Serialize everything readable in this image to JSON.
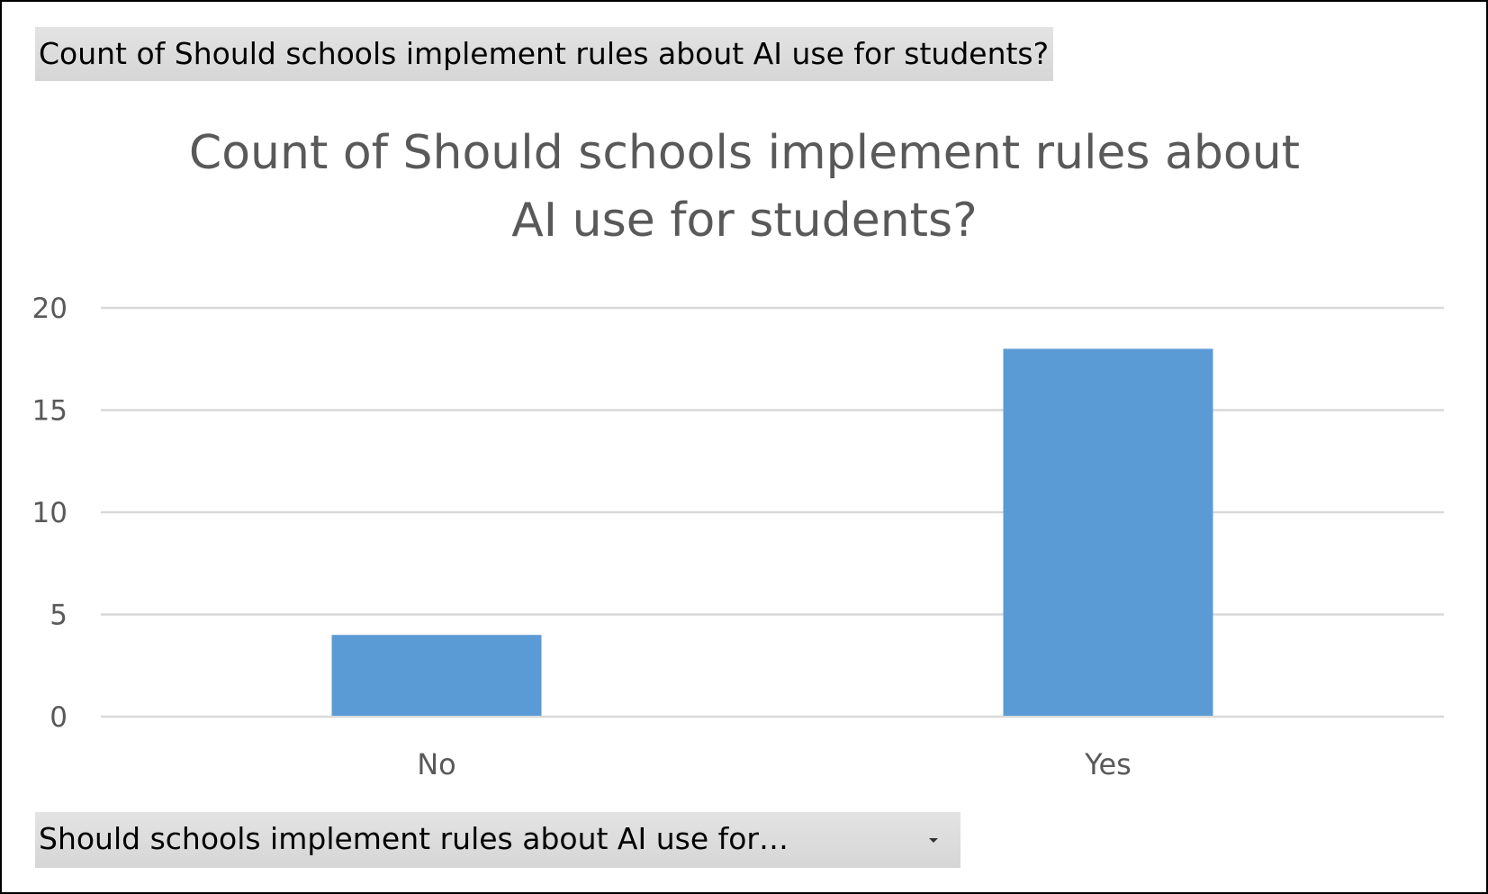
{
  "pivot": {
    "value_field_label": "Count of Should schools implement rules about AI use for students?",
    "axis_field_label": "Should schools implement rules about AI use for…",
    "dropdown_icon": "dropdown-arrow-icon"
  },
  "chart_data": {
    "type": "bar",
    "title": "Count of Should schools implement rules about AI use for students?",
    "title_lines": [
      "Count of Should schools implement rules about",
      "AI use for students?"
    ],
    "categories": [
      "No",
      "Yes"
    ],
    "values": [
      4,
      18
    ],
    "xlabel": "",
    "ylabel": "",
    "ylim": [
      0,
      20
    ],
    "yticks": [
      0,
      5,
      10,
      15,
      20
    ],
    "grid": true,
    "legend": "none",
    "colors": {
      "bar": "#5b9bd5",
      "text": "#595959",
      "grid": "#d9d9d9"
    }
  }
}
